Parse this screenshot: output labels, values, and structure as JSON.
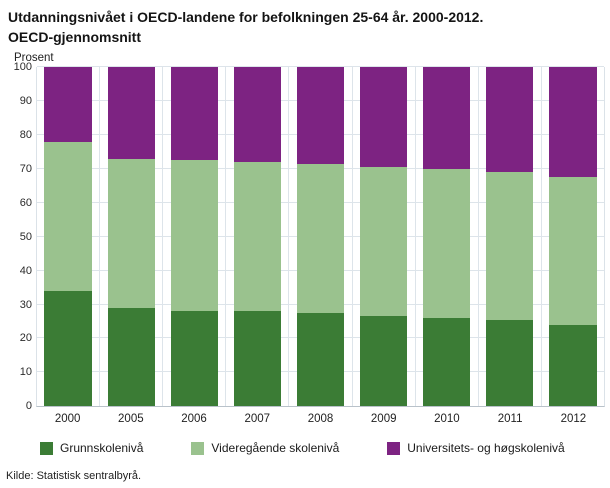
{
  "title": "Utdanningsnivået i OECD-landene for befolkningen 25-64 år. 2000-2012.\nOECD-gjennomsnitt",
  "y_unit_label": "Prosent",
  "source": "Kilde: Statistisk sentralbyrå.",
  "chart_data": {
    "type": "bar",
    "stacked": true,
    "title": "Utdanningsnivået i OECD-landene for befolkningen 25-64 år. 2000-2012. OECD-gjennomsnitt",
    "xlabel": "",
    "ylabel": "Prosent",
    "ylim": [
      0,
      100
    ],
    "yticks": [
      0,
      10,
      20,
      30,
      40,
      50,
      60,
      70,
      80,
      90,
      100
    ],
    "grid": true,
    "legend_position": "bottom",
    "categories": [
      "2000",
      "2005",
      "2006",
      "2007",
      "2008",
      "2009",
      "2010",
      "2011",
      "2012"
    ],
    "series": [
      {
        "name": "Grunnskolenivå",
        "color": "#3b7c35",
        "values": [
          34,
          29,
          28,
          28,
          27.5,
          26.5,
          26,
          25.5,
          24
        ]
      },
      {
        "name": "Videregående skolenivå",
        "color": "#9ac28e",
        "values": [
          44,
          44,
          44.5,
          44,
          44,
          44,
          44,
          43.5,
          43.5
        ]
      },
      {
        "name": "Universitets- og høgskolenivå",
        "color": "#7d2382",
        "values": [
          22,
          27,
          27.5,
          28,
          28.5,
          29.5,
          30,
          31,
          32.5
        ]
      }
    ]
  }
}
